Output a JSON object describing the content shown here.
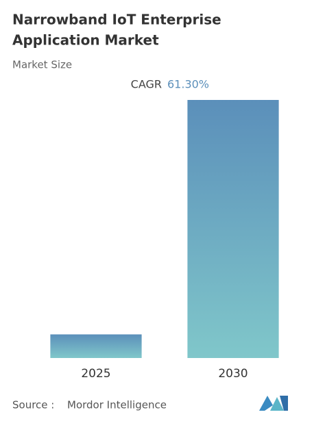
{
  "chart_data": {
    "type": "bar",
    "title_lines": [
      "Narrowband IoT Enterprise",
      "Application Market"
    ],
    "subtitle": "Market Size",
    "cagr_label": "CAGR",
    "cagr_value": "61.30%",
    "categories": [
      "2025",
      "2030"
    ],
    "values": [
      1,
      10.92
    ],
    "ylim": [
      0,
      10.92
    ],
    "gradient": [
      "#5b8fba",
      "#80c7ca"
    ],
    "source_label": "Source :",
    "source": "Mordor Intelligence"
  }
}
